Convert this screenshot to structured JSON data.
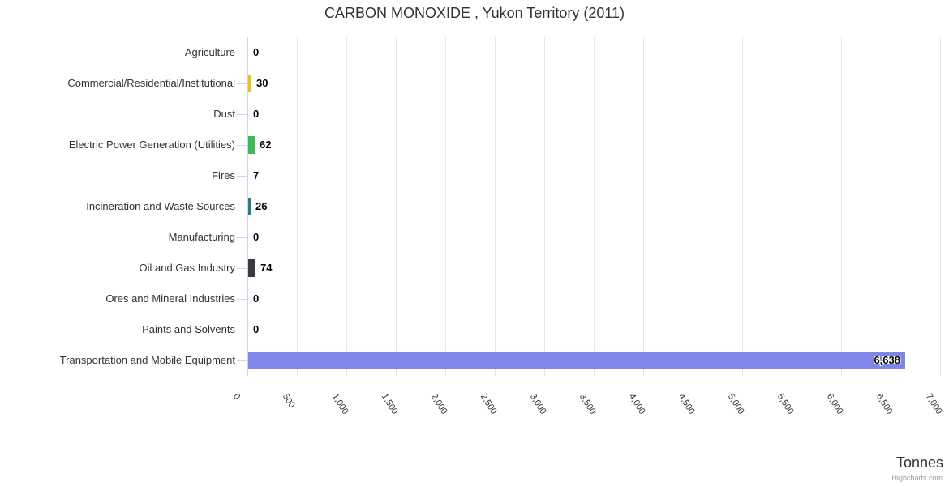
{
  "title": "CARBON MONOXIDE , Yukon Territory (2011)",
  "credits": "Highcharts.com",
  "colors": {
    "grid_line": "#e6e6e6",
    "axis_line": "#ccd6eb",
    "category_tick": "#ccd6eb",
    "title_text": "#333333",
    "label_text": "#333333",
    "data_label_text": "#000000"
  },
  "chart_data": {
    "type": "bar",
    "title": "CARBON MONOXIDE , Yukon Territory (2011)",
    "categories": [
      "Agriculture",
      "Commercial/Residential/Institutional",
      "Dust",
      "Electric Power Generation (Utilities)",
      "Fires",
      "Incineration and Waste Sources",
      "Manufacturing",
      "Oil and Gas Industry",
      "Ores and Mineral Industries",
      "Paints and Solvents",
      "Transportation and Mobile Equipment"
    ],
    "values": [
      0,
      30,
      0,
      62,
      7,
      26,
      0,
      74,
      0,
      0,
      6638
    ],
    "value_labels": [
      "0",
      "30",
      "0",
      "62",
      "7",
      "26",
      "0",
      "74",
      "0",
      "0",
      "6,638"
    ],
    "bar_colors": [
      null,
      "#EEC111",
      null,
      "#3EBB58",
      null,
      "#2A7E7F",
      null,
      "#3B3B43",
      null,
      null,
      "#8085E8"
    ],
    "xlabel": "Tonnes",
    "xlim": [
      0,
      7000
    ],
    "tick_interval": 500,
    "tick_labels": [
      "0",
      "500",
      "1,000",
      "1,500",
      "2,000",
      "2,500",
      "3,000",
      "3,500",
      "4,000",
      "4,500",
      "5,000",
      "5,500",
      "6,000",
      "6,500",
      "7,000"
    ],
    "legend": "none",
    "grid": "vertical"
  }
}
